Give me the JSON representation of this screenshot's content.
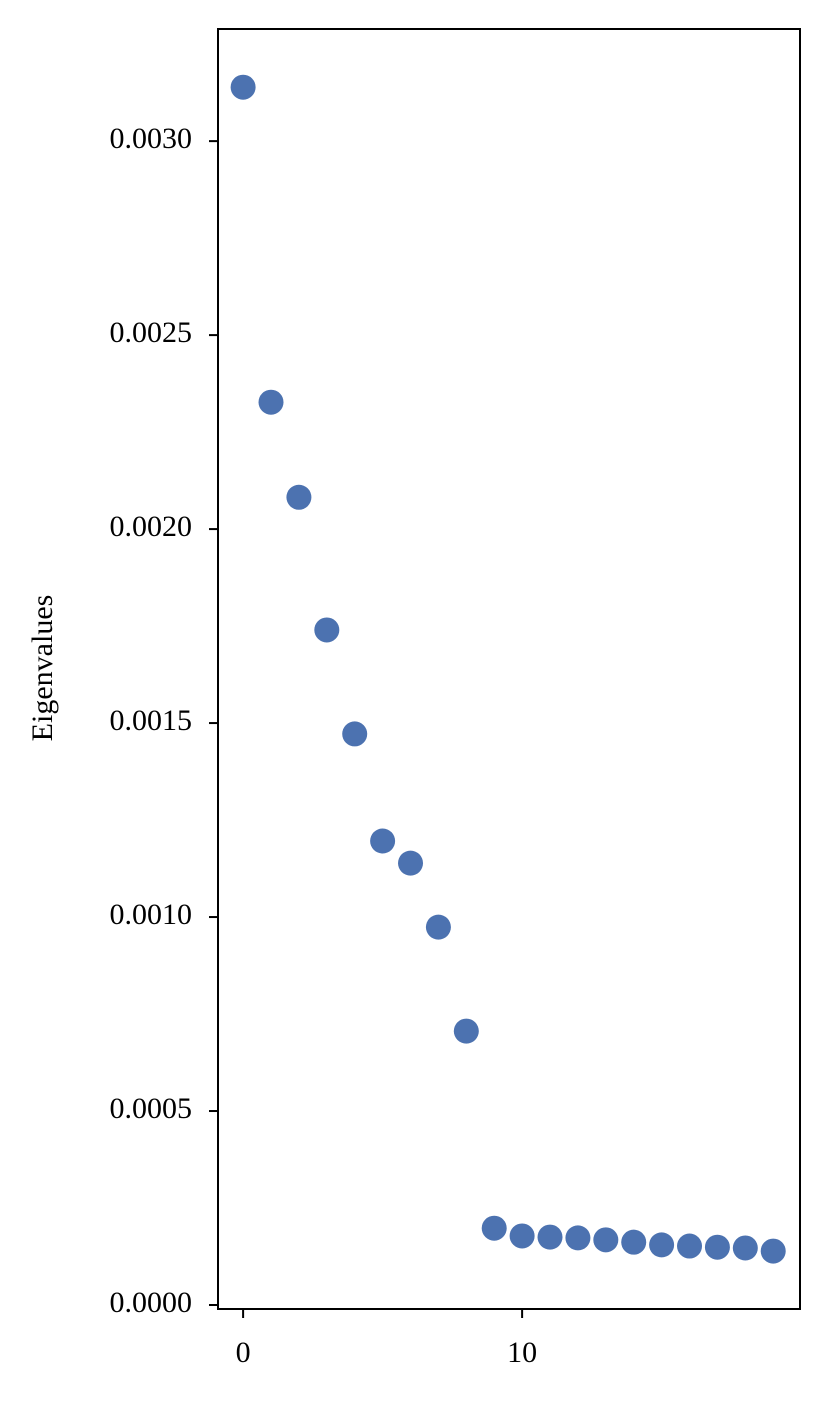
{
  "chart_data": {
    "type": "scatter",
    "ylabel": "Eigenvalues",
    "x": [
      0,
      1,
      2,
      3,
      4,
      5,
      6,
      7,
      8,
      9,
      10,
      11,
      12,
      13,
      14,
      15,
      16,
      17,
      18,
      19
    ],
    "series": [
      {
        "color": "#4c72b0",
        "values": [
          0.003139,
          0.002327,
          0.002082,
          0.00174,
          0.001472,
          0.001196,
          0.001139,
          0.000974,
          0.000706,
          0.000198,
          0.000178,
          0.000175,
          0.000173,
          0.000168,
          0.000162,
          0.000155,
          0.000152,
          0.000149,
          0.000147,
          0.000139
        ]
      }
    ],
    "xlim": [
      -0.9,
      19.96
    ],
    "ylim": [
      -1.03e-05,
      0.003289
    ],
    "xticks": [
      0,
      10
    ],
    "yticks": [
      {
        "value": 0,
        "label": "0.0000"
      },
      {
        "value": 0.0005,
        "label": "0.0005"
      },
      {
        "value": 0.001,
        "label": "0.0010"
      },
      {
        "value": 0.0015,
        "label": "0.0015"
      },
      {
        "value": 0.002,
        "label": "0.0020"
      },
      {
        "value": 0.0025,
        "label": "0.0025"
      },
      {
        "value": 0.003,
        "label": "0.0030"
      }
    ],
    "grid": false
  }
}
